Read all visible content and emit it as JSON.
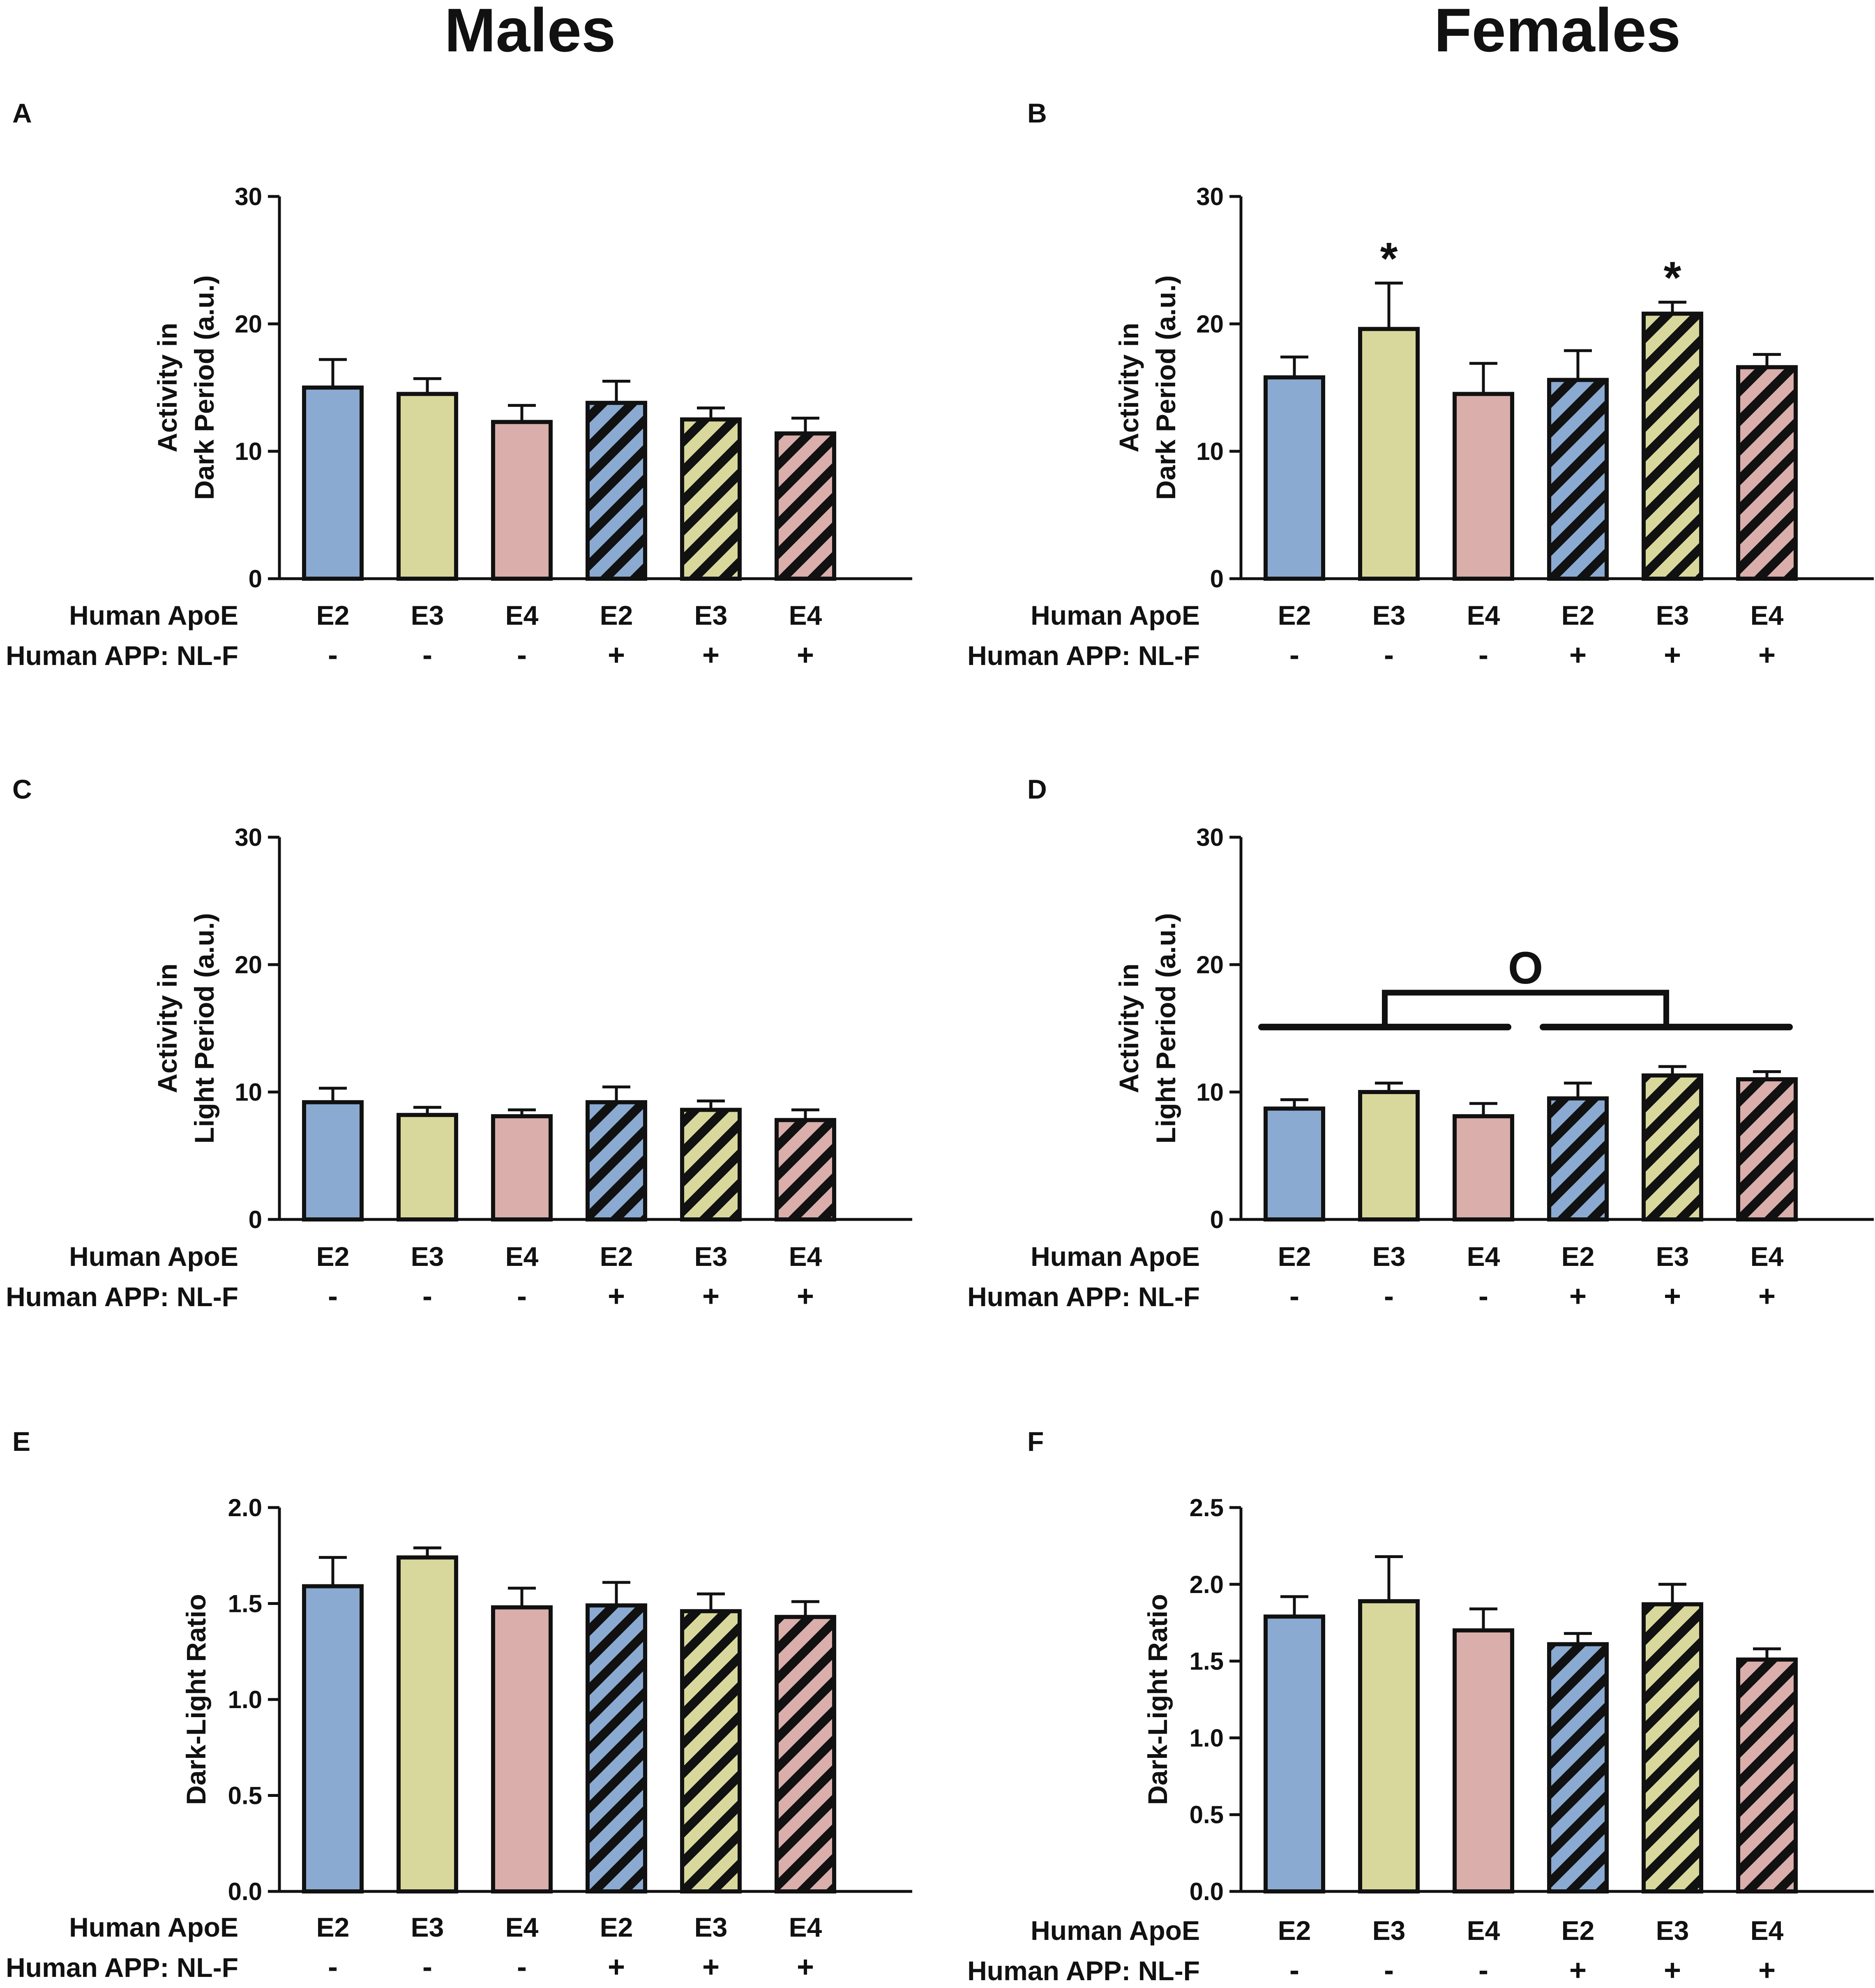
{
  "column_titles": [
    "Males",
    "Females"
  ],
  "colors": {
    "E2": "#8aaad1",
    "E3": "#d8d89c",
    "E4": "#d9aeab",
    "ink": "#111111"
  },
  "chart_data": [
    {
      "panel": "A",
      "type": "bar",
      "title": "",
      "xlabel": "",
      "ylabel": [
        "Activity in",
        "Dark Period (a.u.)"
      ],
      "ylim": [
        0,
        30
      ],
      "yticks": [
        "0",
        "10",
        "20",
        "30"
      ],
      "row_labels": [
        "Human ApoE",
        "Human APP: NL-F"
      ],
      "categories": [
        "E2",
        "E3",
        "E4",
        "E2",
        "E3",
        "E4"
      ],
      "app_nlf": [
        "-",
        "-",
        "-",
        "+",
        "+",
        "+"
      ],
      "values": [
        15.0,
        14.5,
        12.3,
        13.8,
        12.5,
        11.4
      ],
      "errors": [
        2.2,
        1.2,
        1.3,
        1.7,
        0.9,
        1.2
      ],
      "hatched": [
        false,
        false,
        false,
        true,
        true,
        true
      ],
      "stars": [],
      "bracket": null
    },
    {
      "panel": "B",
      "type": "bar",
      "title": "",
      "xlabel": "",
      "ylabel": [
        "Activity in",
        "Dark Period (a.u.)"
      ],
      "ylim": [
        0,
        30
      ],
      "yticks": [
        "0",
        "10",
        "20",
        "30"
      ],
      "row_labels": [
        "Human ApoE",
        "Human APP: NL-F"
      ],
      "categories": [
        "E2",
        "E3",
        "E4",
        "E2",
        "E3",
        "E4"
      ],
      "app_nlf": [
        "-",
        "-",
        "-",
        "+",
        "+",
        "+"
      ],
      "values": [
        15.8,
        19.6,
        14.5,
        15.6,
        20.8,
        16.6
      ],
      "errors": [
        1.6,
        3.6,
        2.4,
        2.3,
        0.9,
        1.0
      ],
      "hatched": [
        false,
        false,
        false,
        true,
        true,
        true
      ],
      "stars": [
        {
          "index": 1,
          "text": "*"
        },
        {
          "index": 4,
          "text": "*"
        }
      ],
      "bracket": null
    },
    {
      "panel": "C",
      "type": "bar",
      "title": "",
      "xlabel": "",
      "ylabel": [
        "Activity in",
        "Light Period (a.u.)"
      ],
      "ylim": [
        0,
        30
      ],
      "yticks": [
        "0",
        "10",
        "20",
        "30"
      ],
      "row_labels": [
        "Human ApoE",
        "Human APP: NL-F"
      ],
      "categories": [
        "E2",
        "E3",
        "E4",
        "E2",
        "E3",
        "E4"
      ],
      "app_nlf": [
        "-",
        "-",
        "-",
        "+",
        "+",
        "+"
      ],
      "values": [
        9.2,
        8.2,
        8.1,
        9.2,
        8.6,
        7.8
      ],
      "errors": [
        1.1,
        0.6,
        0.5,
        1.2,
        0.7,
        0.8
      ],
      "hatched": [
        false,
        false,
        false,
        true,
        true,
        true
      ],
      "stars": [],
      "bracket": null
    },
    {
      "panel": "D",
      "type": "bar",
      "title": "",
      "xlabel": "",
      "ylabel": [
        "Activity in",
        "Light Period (a.u.)"
      ],
      "ylim": [
        0,
        30
      ],
      "yticks": [
        "0",
        "10",
        "20",
        "30"
      ],
      "row_labels": [
        "Human ApoE",
        "Human APP: NL-F"
      ],
      "categories": [
        "E2",
        "E3",
        "E4",
        "E2",
        "E3",
        "E4"
      ],
      "app_nlf": [
        "-",
        "-",
        "-",
        "+",
        "+",
        "+"
      ],
      "values": [
        8.7,
        10.0,
        8.1,
        9.5,
        11.3,
        11.0
      ],
      "errors": [
        0.7,
        0.7,
        1.0,
        1.2,
        0.7,
        0.6
      ],
      "hatched": [
        false,
        false,
        false,
        true,
        true,
        true
      ],
      "stars": [],
      "bracket": {
        "level": 15.1,
        "top": 17.8,
        "left_group": [
          0,
          2
        ],
        "right_group": [
          3,
          5
        ],
        "text": "O"
      }
    },
    {
      "panel": "E",
      "type": "bar",
      "title": "",
      "xlabel": "",
      "ylabel": [
        "Dark-Light Ratio"
      ],
      "ylim": [
        0,
        2.0
      ],
      "yticks": [
        "0.0",
        "0.5",
        "1.0",
        "1.5",
        "2.0"
      ],
      "row_labels": [
        "Human ApoE",
        "Human APP: NL-F"
      ],
      "categories": [
        "E2",
        "E3",
        "E4",
        "E2",
        "E3",
        "E4"
      ],
      "app_nlf": [
        "-",
        "-",
        "-",
        "+",
        "+",
        "+"
      ],
      "values": [
        1.59,
        1.74,
        1.48,
        1.49,
        1.46,
        1.43
      ],
      "errors": [
        0.15,
        0.05,
        0.1,
        0.12,
        0.09,
        0.08
      ],
      "hatched": [
        false,
        false,
        false,
        true,
        true,
        true
      ],
      "stars": [],
      "bracket": null
    },
    {
      "panel": "F",
      "type": "bar",
      "title": "",
      "xlabel": "",
      "ylabel": [
        "Dark-Light Ratio"
      ],
      "ylim": [
        0,
        2.5
      ],
      "yticks": [
        "0.0",
        "0.5",
        "1.0",
        "1.5",
        "2.0",
        "2.5"
      ],
      "row_labels": [
        "Human ApoE",
        "Human APP: NL-F"
      ],
      "categories": [
        "E2",
        "E3",
        "E4",
        "E2",
        "E3",
        "E4"
      ],
      "app_nlf": [
        "-",
        "-",
        "-",
        "+",
        "+",
        "+"
      ],
      "values": [
        1.79,
        1.89,
        1.7,
        1.61,
        1.87,
        1.51
      ],
      "errors": [
        0.13,
        0.29,
        0.14,
        0.07,
        0.13,
        0.07
      ],
      "hatched": [
        false,
        false,
        false,
        true,
        true,
        true
      ],
      "stars": [],
      "bracket": null
    }
  ]
}
